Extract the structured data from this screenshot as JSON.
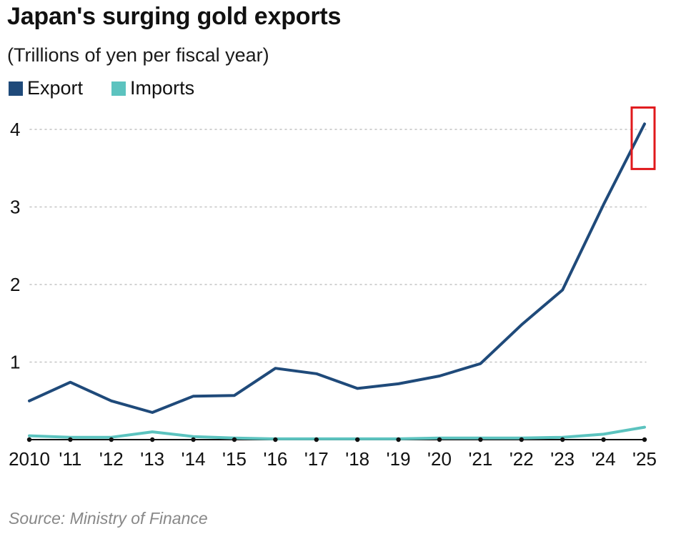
{
  "header": {
    "title": "Japan's surging gold exports",
    "subtitle": "(Trillions of yen per fiscal year)"
  },
  "legend": [
    {
      "label": "Export",
      "color": "#1f4a7a"
    },
    {
      "label": "Imports",
      "color": "#5cc3bf"
    }
  ],
  "footer": {
    "source": "Source: Ministry of Finance"
  },
  "highlight": {
    "color": "#e0191c"
  },
  "chart_data": {
    "type": "line",
    "categories": [
      "2010",
      "'11",
      "'12",
      "'13",
      "'14",
      "'15",
      "'16",
      "'17",
      "'18",
      "'19",
      "'20",
      "'21",
      "'22",
      "'23",
      "'24",
      "'25"
    ],
    "series": [
      {
        "name": "Export",
        "color": "#1f4a7a",
        "values": [
          0.5,
          0.74,
          0.5,
          0.35,
          0.56,
          0.57,
          0.92,
          0.85,
          0.66,
          0.72,
          0.82,
          0.98,
          1.48,
          1.93,
          3.03,
          4.07
        ]
      },
      {
        "name": "Imports",
        "color": "#5cc3bf",
        "values": [
          0.05,
          0.03,
          0.03,
          0.1,
          0.04,
          0.02,
          0.01,
          0.01,
          0.01,
          0.01,
          0.02,
          0.02,
          0.02,
          0.03,
          0.07,
          0.16
        ]
      }
    ],
    "yticks": [
      1,
      2,
      3,
      4
    ],
    "ylim": [
      0,
      4.3
    ],
    "grid": true,
    "legend_position": "top-left"
  }
}
